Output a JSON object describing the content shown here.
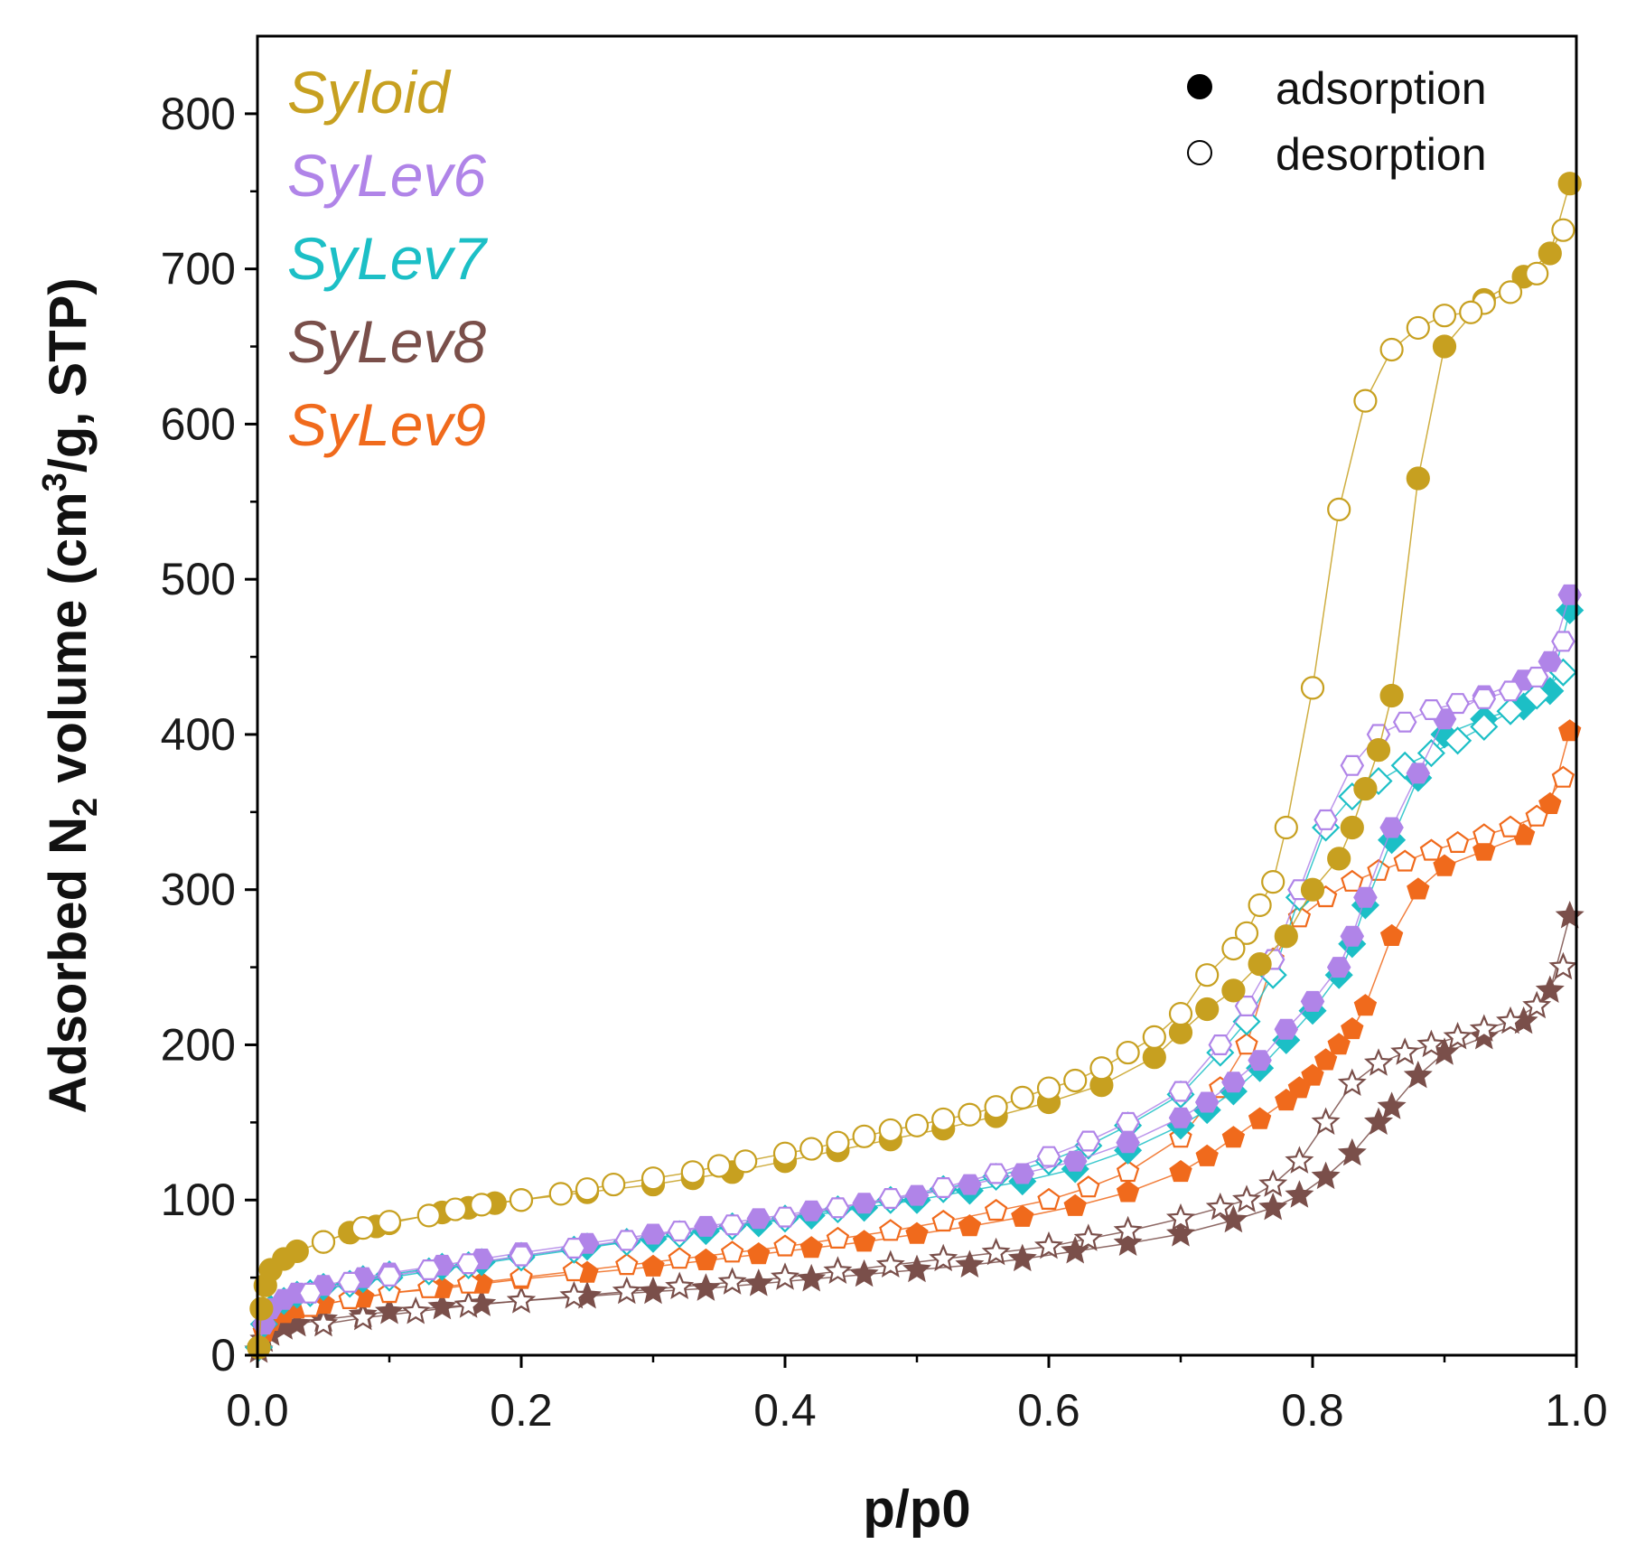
{
  "chart_data": {
    "type": "scatter",
    "title": "",
    "xlabel": "p/p0",
    "ylabel_parts": [
      "Adsorbed N",
      "2",
      " volume (cm",
      "3",
      "/g, STP)"
    ],
    "xlim": [
      0.0,
      1.0
    ],
    "ylim": [
      0,
      850
    ],
    "x_ticks": [
      0.0,
      0.2,
      0.4,
      0.6,
      0.8,
      1.0
    ],
    "x_tick_labels": [
      "0.0",
      "0.2",
      "0.4",
      "0.6",
      "0.8",
      "1.0"
    ],
    "y_ticks": [
      0,
      100,
      200,
      300,
      400,
      500,
      600,
      700,
      800
    ],
    "y_tick_labels": [
      "0",
      "100",
      "200",
      "300",
      "400",
      "500",
      "600",
      "700",
      "800"
    ],
    "grid": false,
    "legend_modes": [
      {
        "label": "adsorption",
        "filled": true
      },
      {
        "label": "desorption",
        "filled": false
      }
    ],
    "series": [
      {
        "name": "Syloid",
        "color": "#c7a020",
        "marker": "circle",
        "adsorption": {
          "x": [
            0.001,
            0.003,
            0.006,
            0.01,
            0.02,
            0.03,
            0.05,
            0.07,
            0.09,
            0.1,
            0.14,
            0.16,
            0.18,
            0.2,
            0.25,
            0.3,
            0.33,
            0.36,
            0.4,
            0.44,
            0.48,
            0.52,
            0.56,
            0.6,
            0.64,
            0.68,
            0.7,
            0.72,
            0.74,
            0.76,
            0.78,
            0.8,
            0.82,
            0.83,
            0.84,
            0.85,
            0.86,
            0.88,
            0.9,
            0.93,
            0.96,
            0.98,
            0.995
          ],
          "y": [
            5,
            30,
            45,
            55,
            62,
            67,
            73,
            79,
            83,
            85,
            92,
            95,
            98,
            100,
            105,
            110,
            114,
            118,
            125,
            132,
            139,
            146,
            154,
            163,
            174,
            192,
            208,
            223,
            235,
            252,
            270,
            300,
            320,
            340,
            365,
            390,
            425,
            565,
            650,
            680,
            695,
            710,
            755
          ]
        },
        "desorption": {
          "x": [
            0.99,
            0.97,
            0.95,
            0.93,
            0.92,
            0.9,
            0.88,
            0.86,
            0.84,
            0.82,
            0.8,
            0.78,
            0.77,
            0.76,
            0.75,
            0.74,
            0.72,
            0.7,
            0.68,
            0.66,
            0.64,
            0.62,
            0.6,
            0.58,
            0.56,
            0.54,
            0.52,
            0.5,
            0.48,
            0.46,
            0.44,
            0.42,
            0.4,
            0.37,
            0.35,
            0.33,
            0.3,
            0.27,
            0.25,
            0.23,
            0.2,
            0.17,
            0.15,
            0.13,
            0.1,
            0.08,
            0.05
          ],
          "y": [
            725,
            697,
            685,
            678,
            672,
            670,
            662,
            648,
            615,
            545,
            430,
            340,
            305,
            290,
            272,
            262,
            245,
            220,
            205,
            195,
            185,
            177,
            172,
            166,
            160,
            155,
            152,
            148,
            145,
            141,
            137,
            133,
            130,
            125,
            122,
            118,
            114,
            110,
            107,
            104,
            100,
            97,
            94,
            90,
            86,
            82,
            73
          ]
        }
      },
      {
        "name": "SyLev6",
        "color": "#b084e8",
        "marker": "hexagon",
        "adsorption": {
          "x": [
            0.001,
            0.005,
            0.01,
            0.02,
            0.03,
            0.05,
            0.08,
            0.1,
            0.14,
            0.17,
            0.2,
            0.25,
            0.3,
            0.34,
            0.38,
            0.42,
            0.46,
            0.5,
            0.54,
            0.58,
            0.62,
            0.66,
            0.7,
            0.72,
            0.74,
            0.76,
            0.78,
            0.8,
            0.82,
            0.83,
            0.84,
            0.86,
            0.88,
            0.9,
            0.93,
            0.96,
            0.98,
            0.995
          ],
          "y": [
            5,
            20,
            30,
            36,
            40,
            45,
            50,
            53,
            58,
            62,
            66,
            72,
            78,
            83,
            88,
            93,
            98,
            103,
            110,
            117,
            125,
            137,
            153,
            163,
            176,
            190,
            210,
            228,
            250,
            270,
            295,
            340,
            375,
            410,
            425,
            435,
            447,
            490
          ]
        },
        "desorption": {
          "x": [
            0.99,
            0.97,
            0.95,
            0.93,
            0.91,
            0.89,
            0.87,
            0.85,
            0.83,
            0.81,
            0.79,
            0.77,
            0.75,
            0.73,
            0.7,
            0.66,
            0.63,
            0.6,
            0.56,
            0.52,
            0.48,
            0.44,
            0.4,
            0.36,
            0.32,
            0.28,
            0.24,
            0.2,
            0.16,
            0.13,
            0.1,
            0.07,
            0.04
          ],
          "y": [
            460,
            437,
            428,
            423,
            420,
            416,
            408,
            400,
            380,
            345,
            300,
            255,
            225,
            200,
            170,
            150,
            138,
            128,
            117,
            108,
            101,
            95,
            89,
            84,
            80,
            74,
            69,
            64,
            59,
            55,
            51,
            47,
            40
          ]
        }
      },
      {
        "name": "SyLev7",
        "color": "#1cbfc6",
        "marker": "diamond",
        "adsorption": {
          "x": [
            0.001,
            0.005,
            0.01,
            0.02,
            0.03,
            0.05,
            0.08,
            0.1,
            0.14,
            0.17,
            0.2,
            0.25,
            0.3,
            0.34,
            0.38,
            0.42,
            0.46,
            0.5,
            0.54,
            0.58,
            0.62,
            0.66,
            0.7,
            0.72,
            0.74,
            0.76,
            0.78,
            0.8,
            0.82,
            0.83,
            0.84,
            0.86,
            0.88,
            0.9,
            0.93,
            0.96,
            0.98,
            0.995
          ],
          "y": [
            5,
            20,
            30,
            35,
            39,
            44,
            49,
            52,
            57,
            60,
            64,
            70,
            75,
            80,
            85,
            90,
            95,
            100,
            106,
            112,
            120,
            132,
            148,
            158,
            170,
            185,
            203,
            222,
            245,
            265,
            290,
            332,
            372,
            400,
            410,
            418,
            428,
            480
          ]
        },
        "desorption": {
          "x": [
            0.99,
            0.97,
            0.95,
            0.93,
            0.91,
            0.89,
            0.87,
            0.85,
            0.83,
            0.81,
            0.79,
            0.77,
            0.75,
            0.73,
            0.7,
            0.66,
            0.63,
            0.6,
            0.56,
            0.52,
            0.48,
            0.44,
            0.4,
            0.36,
            0.32,
            0.28,
            0.24,
            0.2,
            0.16,
            0.13,
            0.1,
            0.07,
            0.04
          ],
          "y": [
            440,
            425,
            415,
            405,
            396,
            388,
            380,
            370,
            360,
            340,
            295,
            245,
            215,
            195,
            168,
            148,
            135,
            125,
            115,
            107,
            100,
            94,
            88,
            83,
            78,
            73,
            68,
            63,
            58,
            54,
            50,
            46,
            40
          ]
        }
      },
      {
        "name": "SyLev8",
        "color": "#7a4f4a",
        "marker": "star",
        "adsorption": {
          "x": [
            0.001,
            0.005,
            0.01,
            0.02,
            0.03,
            0.05,
            0.08,
            0.1,
            0.14,
            0.17,
            0.2,
            0.25,
            0.3,
            0.34,
            0.38,
            0.42,
            0.46,
            0.5,
            0.54,
            0.58,
            0.62,
            0.66,
            0.7,
            0.74,
            0.77,
            0.79,
            0.81,
            0.83,
            0.85,
            0.86,
            0.88,
            0.9,
            0.93,
            0.96,
            0.98,
            0.995
          ],
          "y": [
            3,
            10,
            14,
            18,
            20,
            23,
            26,
            28,
            31,
            33,
            35,
            38,
            41,
            43,
            46,
            49,
            52,
            55,
            58,
            62,
            67,
            72,
            78,
            87,
            95,
            103,
            115,
            130,
            150,
            160,
            180,
            195,
            205,
            215,
            235,
            283
          ]
        },
        "desorption": {
          "x": [
            0.99,
            0.97,
            0.95,
            0.93,
            0.91,
            0.89,
            0.87,
            0.85,
            0.83,
            0.81,
            0.79,
            0.77,
            0.75,
            0.73,
            0.7,
            0.66,
            0.63,
            0.6,
            0.56,
            0.52,
            0.48,
            0.44,
            0.4,
            0.36,
            0.32,
            0.28,
            0.24,
            0.2,
            0.16,
            0.12,
            0.08,
            0.05
          ],
          "y": [
            250,
            225,
            215,
            210,
            205,
            200,
            195,
            188,
            175,
            150,
            125,
            110,
            100,
            95,
            88,
            80,
            75,
            70,
            66,
            62,
            58,
            54,
            50,
            47,
            44,
            41,
            38,
            35,
            32,
            28,
            24,
            20
          ]
        }
      },
      {
        "name": "SyLev9",
        "color": "#f06a1c",
        "marker": "pentagon",
        "adsorption": {
          "x": [
            0.001,
            0.005,
            0.01,
            0.02,
            0.03,
            0.05,
            0.08,
            0.1,
            0.14,
            0.17,
            0.2,
            0.25,
            0.3,
            0.34,
            0.38,
            0.42,
            0.46,
            0.5,
            0.54,
            0.58,
            0.62,
            0.66,
            0.7,
            0.72,
            0.74,
            0.76,
            0.78,
            0.79,
            0.8,
            0.81,
            0.82,
            0.83,
            0.84,
            0.86,
            0.88,
            0.9,
            0.93,
            0.96,
            0.98,
            0.995
          ],
          "y": [
            5,
            15,
            22,
            27,
            30,
            33,
            37,
            40,
            43,
            46,
            49,
            53,
            57,
            61,
            65,
            69,
            73,
            78,
            83,
            89,
            96,
            105,
            118,
            128,
            140,
            152,
            164,
            172,
            180,
            190,
            200,
            210,
            225,
            270,
            300,
            315,
            325,
            335,
            355,
            402
          ]
        },
        "desorption": {
          "x": [
            0.99,
            0.97,
            0.95,
            0.93,
            0.91,
            0.89,
            0.87,
            0.85,
            0.83,
            0.81,
            0.79,
            0.77,
            0.75,
            0.73,
            0.7,
            0.66,
            0.63,
            0.6,
            0.56,
            0.52,
            0.48,
            0.44,
            0.4,
            0.36,
            0.32,
            0.28,
            0.24,
            0.2,
            0.16,
            0.13,
            0.1,
            0.07,
            0.04
          ],
          "y": [
            372,
            347,
            340,
            335,
            330,
            325,
            318,
            312,
            305,
            295,
            282,
            255,
            200,
            172,
            140,
            118,
            108,
            100,
            93,
            86,
            80,
            75,
            70,
            66,
            62,
            58,
            54,
            50,
            46,
            43,
            40,
            36,
            31
          ]
        }
      }
    ]
  }
}
